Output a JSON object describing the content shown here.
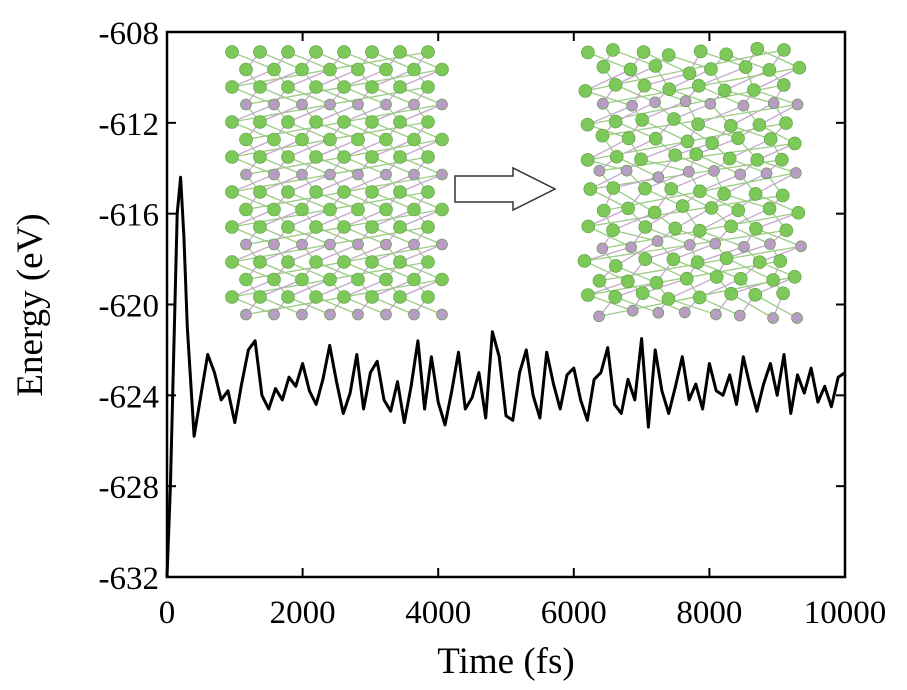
{
  "chart_data": {
    "type": "line",
    "xlabel": "Time (fs)",
    "ylabel": "Energy (eV)",
    "xlim": [
      0,
      10000
    ],
    "xticks": [
      0,
      2000,
      4000,
      6000,
      8000,
      10000
    ],
    "ylim": [
      -632,
      -608
    ],
    "yticks": [
      -632,
      -628,
      -624,
      -620,
      -616,
      -612,
      -608
    ],
    "color": "#000000",
    "x": [
      0,
      50,
      100,
      150,
      200,
      250,
      300,
      400,
      500,
      600,
      700,
      800,
      900,
      1000,
      1100,
      1200,
      1300,
      1400,
      1500,
      1600,
      1700,
      1800,
      1900,
      2000,
      2100,
      2200,
      2300,
      2400,
      2500,
      2600,
      2700,
      2800,
      2900,
      3000,
      3100,
      3200,
      3300,
      3400,
      3500,
      3600,
      3700,
      3800,
      3900,
      4000,
      4100,
      4200,
      4300,
      4400,
      4500,
      4600,
      4700,
      4800,
      4900,
      5000,
      5100,
      5200,
      5300,
      5400,
      5500,
      5600,
      5700,
      5800,
      5900,
      6000,
      6100,
      6200,
      6300,
      6400,
      6500,
      6600,
      6700,
      6800,
      6900,
      7000,
      7100,
      7200,
      7300,
      7400,
      7500,
      7600,
      7700,
      7800,
      7900,
      8000,
      8100,
      8200,
      8300,
      8400,
      8500,
      8600,
      8700,
      8800,
      8900,
      9000,
      9100,
      9200,
      9300,
      9400,
      9500,
      9600,
      9700,
      9800,
      9900,
      10000
    ],
    "values": [
      -632,
      -628,
      -622,
      -616,
      -614.4,
      -617,
      -621,
      -625.8,
      -624,
      -622.2,
      -623,
      -624.2,
      -623.8,
      -625.2,
      -623.5,
      -622,
      -621.6,
      -624,
      -624.6,
      -623.7,
      -624.2,
      -623.2,
      -623.6,
      -622.6,
      -623.8,
      -624.4,
      -623.3,
      -621.8,
      -623.4,
      -624.8,
      -623.9,
      -622.2,
      -624.6,
      -623,
      -622.5,
      -624.2,
      -624.7,
      -623.4,
      -625.2,
      -623.6,
      -621.6,
      -624.6,
      -622.3,
      -624.3,
      -625.3,
      -623.8,
      -622.1,
      -624.6,
      -624.1,
      -623,
      -625,
      -621.2,
      -622.3,
      -624.9,
      -625.1,
      -623,
      -622,
      -624,
      -625,
      -622.1,
      -623.5,
      -624.6,
      -623.1,
      -622.8,
      -624.2,
      -625.1,
      -623.3,
      -623,
      -621.9,
      -624.4,
      -624.8,
      -623.3,
      -624.2,
      -621.5,
      -625.4,
      -622,
      -623.8,
      -624.8,
      -623.6,
      -622.3,
      -624.2,
      -623.5,
      -624.6,
      -622.6,
      -623.8,
      -624,
      -623.1,
      -624.4,
      -622.3,
      -623.6,
      -624.7,
      -623.5,
      -622.6,
      -624,
      -622.2,
      -624.8,
      -623.1,
      -623.9,
      -622.8,
      -624.3,
      -623.6,
      -624.5,
      -623.2,
      -623
    ]
  }
}
